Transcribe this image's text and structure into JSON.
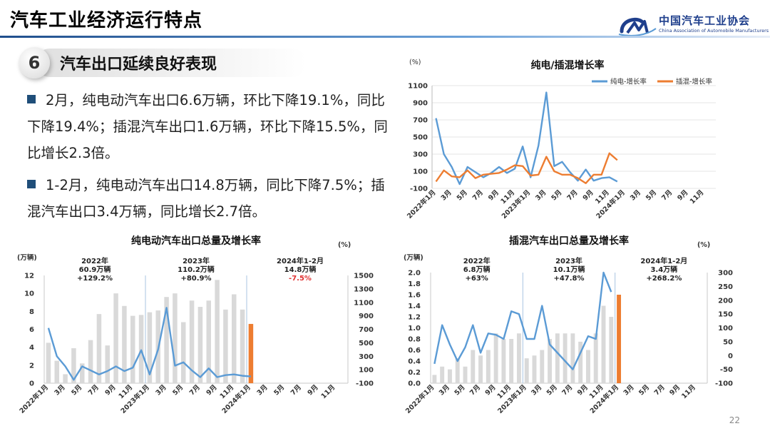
{
  "header": {
    "title": "汽车工业经济运行特点"
  },
  "logo": {
    "name_cn": "中国汽车工业协会",
    "name_en": "China Association of Automobile Manufacturers"
  },
  "section": {
    "number": "6",
    "title": "汽车出口延续良好表现"
  },
  "bullets": [
    "2月，纯电动汽车出口6.6万辆，环比下降19.1%，同比下降19.4%；插混汽车出口1.6万辆，环比下降15.5%，同比增长2.3倍。",
    "1-2月，纯电动汽车出口14.8万辆，同比下降7.5%；插混汽车出口3.4万辆，同比增长2.7倍。"
  ],
  "page_number": "22",
  "colors": {
    "blue_line": "#5b9bd5",
    "orange": "#ed7d31",
    "bar_gray": "#d9d9d9",
    "highlight_red": "#e03030",
    "divider": "#a9c4e2"
  },
  "chart_data": [
    {
      "id": "growth",
      "type": "line",
      "title": "纯电/插混增长率",
      "unit": "(%)",
      "xlabels": [
        "2022年1月",
        "3月",
        "5月",
        "7月",
        "9月",
        "11月",
        "2023年1月",
        "3月",
        "5月",
        "7月",
        "9月",
        "11月",
        "2024年1月",
        "3月",
        "5月",
        "7月",
        "9月",
        "11月"
      ],
      "ylim": [
        -100,
        1100
      ],
      "yticks": [
        -100,
        100,
        300,
        500,
        700,
        900,
        1100
      ],
      "legend_position": "top-right",
      "series": [
        {
          "name": "纯电-增长率",
          "color": "#5b9bd5",
          "values": [
            720,
            300,
            150,
            -50,
            150,
            90,
            30,
            80,
            150,
            80,
            130,
            390,
            30,
            400,
            1020,
            160,
            210,
            90,
            -10,
            120,
            -10,
            20,
            30,
            -20
          ]
        },
        {
          "name": "插混-增长率",
          "color": "#ed7d31",
          "values": [
            -20,
            110,
            40,
            30,
            110,
            20,
            60,
            70,
            80,
            120,
            170,
            160,
            50,
            60,
            270,
            100,
            60,
            60,
            20,
            -40,
            60,
            60,
            310,
            230
          ]
        }
      ]
    },
    {
      "id": "bev",
      "type": "bar",
      "title": "纯电动汽车出口总量及增长率",
      "y_left_label": "(万辆)",
      "y_right_label": "(%)",
      "ylim": [
        0,
        12
      ],
      "y_left_ticks": [
        0,
        2,
        4,
        6,
        8,
        10,
        12
      ],
      "y2lim": [
        -100,
        1500
      ],
      "y_right_ticks": [
        -100,
        100,
        300,
        500,
        700,
        900,
        1100,
        1300,
        1500
      ],
      "xlabels": [
        "2022年1月",
        "3月",
        "5月",
        "7月",
        "9月",
        "11月",
        "2023年1月",
        "3月",
        "5月",
        "7月",
        "9月",
        "11月",
        "2024年1月",
        "3月",
        "5月",
        "7月",
        "9月",
        "11月"
      ],
      "annotations": [
        {
          "year": "2022年",
          "total": "60.9万辆",
          "growth": "+129.2%",
          "red": false
        },
        {
          "year": "2023年",
          "total": "110.2万辆",
          "growth": "+80.9%",
          "red": false
        },
        {
          "year": "2024年1-2月",
          "total": "14.8万辆",
          "growth": "-7.5%",
          "red": true
        }
      ],
      "series": [
        {
          "name": "出口总量",
          "type": "bar",
          "color": "#d9d9d9",
          "values": [
            4.5,
            2.5,
            1.0,
            3.9,
            2.2,
            4.8,
            7.7,
            4.2,
            10.0,
            8.6,
            7.5,
            7.6,
            7.9,
            8.1,
            9.6,
            10.0,
            6.8,
            9.2,
            8.5,
            9.2,
            11.5,
            8.2,
            9.9,
            8.2,
            6.6
          ]
        },
        {
          "name": "增长率",
          "type": "line",
          "color": "#5b9bd5",
          "values": [
            720,
            300,
            150,
            -50,
            150,
            90,
            30,
            80,
            150,
            80,
            130,
            390,
            30,
            400,
            1020,
            160,
            210,
            90,
            -10,
            120,
            -10,
            20,
            30,
            10,
            0
          ]
        }
      ],
      "highlight_bar": {
        "index": 24,
        "color": "#ed7d31"
      }
    },
    {
      "id": "phev",
      "type": "bar",
      "title": "插混汽车出口总量及增长率",
      "y_left_label": "(万辆)",
      "y_right_label": "(%)",
      "ylim": [
        0,
        2.0
      ],
      "y_left_ticks": [
        0,
        0.2,
        0.4,
        0.6,
        0.8,
        1.0,
        1.2,
        1.4,
        1.6,
        1.8,
        2.0
      ],
      "y2lim": [
        -100,
        300
      ],
      "y_right_ticks": [
        -100,
        -50,
        0,
        50,
        100,
        150,
        200,
        250,
        300
      ],
      "xlabels": [
        "2022年1月",
        "3月",
        "5月",
        "7月",
        "9月",
        "11月",
        "2023年1月",
        "3月",
        "5月",
        "7月",
        "9月",
        "11月",
        "2024年1月",
        "3月",
        "5月",
        "7月",
        "9月",
        "11月"
      ],
      "annotations": [
        {
          "year": "2022年",
          "total": "6.8万辆",
          "growth": "+63%",
          "red": false
        },
        {
          "year": "2023年",
          "total": "10.1万辆",
          "growth": "+47.8%",
          "red": false
        },
        {
          "year": "2024年1-2月",
          "total": "3.4万辆",
          "growth": "+268.2%",
          "red": false
        }
      ],
      "series": [
        {
          "name": "出口总量",
          "type": "bar",
          "color": "#d9d9d9",
          "values": [
            0.15,
            0.3,
            0.25,
            0.45,
            0.3,
            0.6,
            0.5,
            0.6,
            0.9,
            0.8,
            0.8,
            0.9,
            0.45,
            0.5,
            0.6,
            0.8,
            0.9,
            0.9,
            0.9,
            0.75,
            0.6,
            0.9,
            1.4,
            1.2,
            1.6
          ]
        },
        {
          "name": "增长率",
          "type": "line",
          "color": "#5b9bd5",
          "values": [
            -30,
            110,
            40,
            -20,
            30,
            110,
            10,
            80,
            75,
            60,
            160,
            150,
            60,
            60,
            180,
            40,
            10,
            -20,
            -50,
            10,
            70,
            60,
            300,
            230
          ]
        }
      ],
      "highlight_bar": {
        "index": 24,
        "color": "#ed7d31"
      }
    }
  ]
}
